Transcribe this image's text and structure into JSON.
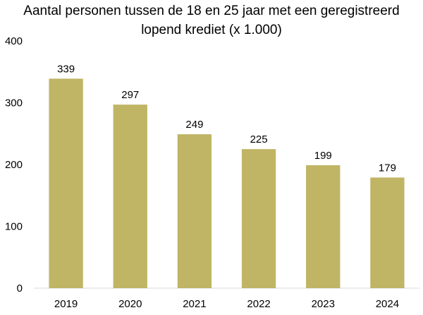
{
  "chart_data": {
    "type": "bar",
    "title_lines": [
      "Aantal personen tussen de 18 en 25 jaar met een geregistreerd",
      "lopend krediet (x 1.000)"
    ],
    "categories": [
      "2019",
      "2020",
      "2021",
      "2022",
      "2023",
      "2024"
    ],
    "values": [
      339,
      297,
      249,
      225,
      199,
      179
    ],
    "data_labels": [
      "339",
      "297",
      "249",
      "225",
      "199",
      "179"
    ],
    "ylim": [
      0,
      400
    ],
    "yticks": [
      "0",
      "100",
      "200",
      "300",
      "400"
    ],
    "grid": false,
    "legend": "none",
    "colors": {
      "bar": "#bfb565",
      "axis": "#d9d9d9"
    }
  }
}
